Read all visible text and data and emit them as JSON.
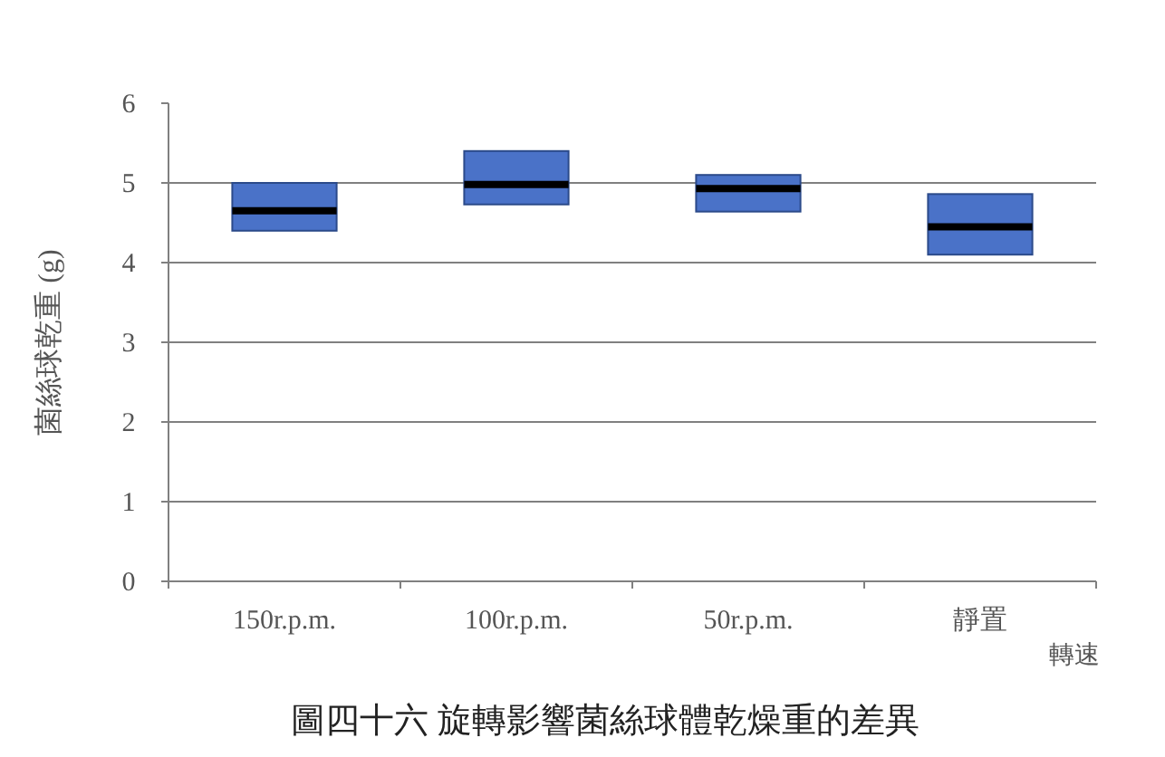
{
  "chart_data": {
    "type": "box",
    "title": "圖四十六 旋轉影響菌絲球體乾燥重的差異",
    "xlabel": "轉速",
    "ylabel": "菌絲球乾重 (g)",
    "categories": [
      "150r.p.m.",
      "100r.p.m.",
      "50r.p.m.",
      "靜置"
    ],
    "boxes": [
      {
        "low": 4.4,
        "q1": 4.4,
        "median": 4.65,
        "q3": 5.0,
        "high": 5.0
      },
      {
        "low": 4.73,
        "q1": 4.73,
        "median": 4.98,
        "q3": 5.4,
        "high": 5.4
      },
      {
        "low": 4.64,
        "q1": 4.64,
        "median": 4.93,
        "q3": 5.1,
        "high": 5.1
      },
      {
        "low": 4.1,
        "q1": 4.1,
        "median": 4.45,
        "q3": 4.86,
        "high": 4.86
      }
    ],
    "color": "#4a72c8",
    "ylim": [
      0,
      6
    ],
    "yticks": [
      0,
      1,
      2,
      3,
      4,
      5,
      6
    ],
    "grid": "y"
  }
}
